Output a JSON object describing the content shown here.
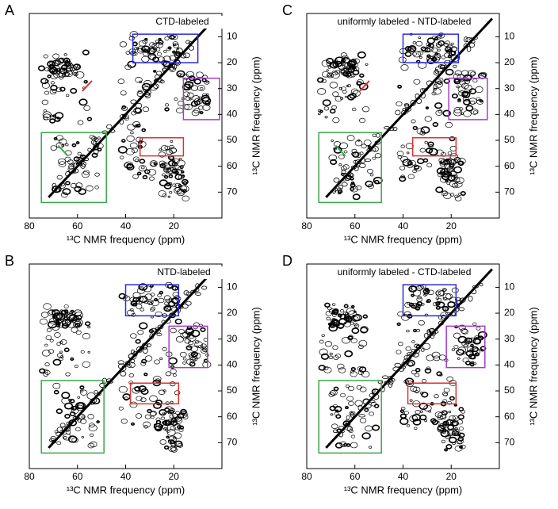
{
  "chart_data": [
    {
      "type": "contour",
      "panel": "A",
      "title": "CTD-labeled",
      "x_label": "¹³C NMR frequency (ppm)",
      "y_label": "¹³C NMR frequency (ppm)",
      "xlim": [
        80,
        0
      ],
      "ylim": [
        80,
        1
      ],
      "xticks": [
        80,
        60,
        40,
        20
      ],
      "yticks": [
        10,
        20,
        30,
        40,
        50,
        60,
        70
      ],
      "boxes": [
        {
          "color": "#2b2bd6",
          "xlim": [
            37,
            10
          ],
          "ylim": [
            9,
            20
          ]
        },
        {
          "color": "#a43cc8",
          "xlim": [
            16,
            1
          ],
          "ylim": [
            26,
            42
          ]
        },
        {
          "color": "#e03030",
          "xlim": [
            34,
            16
          ],
          "ylim": [
            49,
            56
          ]
        },
        {
          "color": "#3aa64a",
          "xlim": [
            75,
            48
          ],
          "ylim": [
            47,
            74
          ]
        }
      ]
    },
    {
      "type": "contour",
      "panel": "C",
      "title": "uniformly labeled - NTD-labeled",
      "x_label": "¹³C NMR frequency (ppm)",
      "y_label": "¹³C NMR frequency (ppm)",
      "xlim": [
        80,
        0
      ],
      "ylim": [
        80,
        1
      ],
      "xticks": [
        80,
        60,
        40,
        20
      ],
      "yticks": [
        10,
        20,
        30,
        40,
        50,
        60,
        70
      ],
      "boxes": [
        {
          "color": "#2b2bd6",
          "xlim": [
            40,
            17
          ],
          "ylim": [
            9,
            20
          ]
        },
        {
          "color": "#a43cc8",
          "xlim": [
            21,
            5
          ],
          "ylim": [
            26,
            42
          ]
        },
        {
          "color": "#e03030",
          "xlim": [
            36,
            18
          ],
          "ylim": [
            49,
            56
          ]
        },
        {
          "color": "#3aa64a",
          "xlim": [
            75,
            49
          ],
          "ylim": [
            47,
            74
          ]
        }
      ]
    },
    {
      "type": "contour",
      "panel": "B",
      "title": "NTD-labeled",
      "x_label": "¹³C NMR frequency (ppm)",
      "y_label": "¹³C NMR frequency (ppm)",
      "xlim": [
        80,
        0
      ],
      "ylim": [
        80,
        1
      ],
      "xticks": [
        80,
        60,
        40,
        20
      ],
      "yticks": [
        10,
        20,
        30,
        40,
        50,
        60,
        70
      ],
      "boxes": [
        {
          "color": "#2b2bd6",
          "xlim": [
            40,
            18
          ],
          "ylim": [
            9,
            21
          ]
        },
        {
          "color": "#a43cc8",
          "xlim": [
            22,
            6
          ],
          "ylim": [
            25,
            41
          ]
        },
        {
          "color": "#e03030",
          "xlim": [
            38,
            18
          ],
          "ylim": [
            47,
            55
          ]
        },
        {
          "color": "#3aa64a",
          "xlim": [
            75,
            49
          ],
          "ylim": [
            46,
            74
          ]
        }
      ]
    },
    {
      "type": "contour",
      "panel": "D",
      "title": "uniformly labeled - CTD-labeled",
      "x_label": "¹³C NMR frequency (ppm)",
      "y_label": "¹³C NMR frequency (ppm)",
      "xlim": [
        80,
        0
      ],
      "ylim": [
        80,
        1
      ],
      "xticks": [
        80,
        60,
        40,
        20
      ],
      "yticks": [
        10,
        20,
        30,
        40,
        50,
        60,
        70
      ],
      "boxes": [
        {
          "color": "#2b2bd6",
          "xlim": [
            40,
            18
          ],
          "ylim": [
            9,
            21
          ]
        },
        {
          "color": "#a43cc8",
          "xlim": [
            22,
            6
          ],
          "ylim": [
            25,
            41
          ]
        },
        {
          "color": "#e03030",
          "xlim": [
            38,
            18
          ],
          "ylim": [
            47,
            55
          ]
        },
        {
          "color": "#3aa64a",
          "xlim": [
            75,
            49
          ],
          "ylim": [
            46,
            74
          ]
        }
      ]
    }
  ]
}
